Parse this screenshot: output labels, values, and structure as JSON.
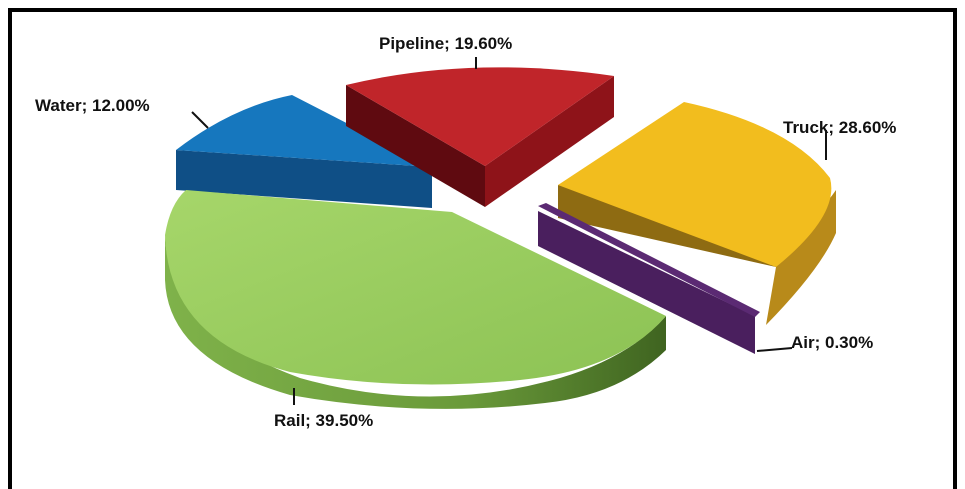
{
  "chart_data": {
    "type": "pie",
    "title": "",
    "slices": [
      {
        "name": "Pipeline",
        "value": 19.6,
        "label": "Pipeline; 19.60%",
        "color": "#c0252a"
      },
      {
        "name": "Truck",
        "value": 28.6,
        "label": "Truck; 28.60%",
        "color": "#f2bd1e"
      },
      {
        "name": "Air",
        "value": 0.3,
        "label": "Air; 0.30%",
        "color": "#5b2a73"
      },
      {
        "name": "Rail",
        "value": 39.5,
        "label": "Rail; 39.50%",
        "color": "#8fc457"
      },
      {
        "name": "Water",
        "value": 12.0,
        "label": "Water; 12.00%",
        "color": "#1677be"
      }
    ],
    "style": "3d-exploded",
    "legend": "none"
  }
}
